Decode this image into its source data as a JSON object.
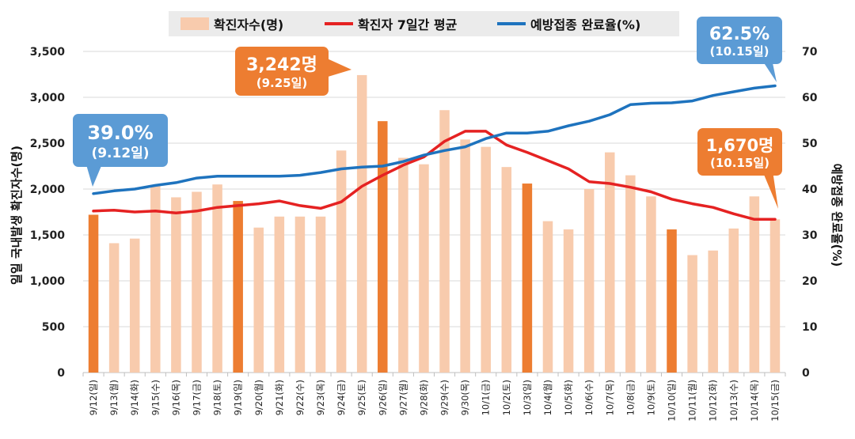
{
  "chart_data": {
    "type": "bar",
    "categories": [
      "9/12(일)",
      "9/13(월)",
      "9/14(화)",
      "9/15(수)",
      "9/16(목)",
      "9/17(금)",
      "9/18(토)",
      "9/19(일)",
      "9/20(월)",
      "9/21(화)",
      "9/22(수)",
      "9/23(목)",
      "9/24(금)",
      "9/25(토)",
      "9/26(일)",
      "9/27(월)",
      "9/28(화)",
      "9/29(수)",
      "9/30(목)",
      "10/1(금)",
      "10/2(토)",
      "10/3(일)",
      "10/4(월)",
      "10/5(화)",
      "10/6(수)",
      "10/7(목)",
      "10/8(금)",
      "10/9(토)",
      "10/10(일)",
      "10/11(월)",
      "10/12(화)",
      "10/13(수)",
      "10/14(목)",
      "10/15(금)"
    ],
    "series": [
      {
        "name": "확진자수(명)",
        "type": "bar",
        "axis": "left",
        "color": "#f8cbad",
        "highlight_color": "#ed7d31",
        "highlight_indices": [
          0,
          7,
          14,
          21,
          28
        ],
        "values": [
          1720,
          1410,
          1460,
          2040,
          1910,
          1970,
          2050,
          1870,
          1580,
          1700,
          1700,
          1700,
          2420,
          3242,
          2740,
          2340,
          2270,
          2860,
          2540,
          2460,
          2240,
          2060,
          1650,
          1560,
          2000,
          2400,
          2150,
          1920,
          1560,
          1280,
          1330,
          1570,
          1920,
          1670
        ]
      },
      {
        "name": "확진자 7일간 평균",
        "type": "line",
        "axis": "left",
        "color": "#e52222",
        "values": [
          1760,
          1770,
          1750,
          1760,
          1740,
          1760,
          1800,
          1820,
          1840,
          1870,
          1820,
          1790,
          1860,
          2030,
          2150,
          2260,
          2350,
          2520,
          2630,
          2630,
          2480,
          2400,
          2310,
          2220,
          2080,
          2060,
          2020,
          1970,
          1890,
          1840,
          1800,
          1730,
          1670,
          1670
        ]
      },
      {
        "name": "예방접종 완료율(%)",
        "type": "line",
        "axis": "right",
        "color": "#1e73be",
        "values": [
          39.0,
          39.6,
          40.0,
          40.8,
          41.4,
          42.4,
          42.8,
          42.8,
          42.8,
          42.8,
          43.0,
          43.6,
          44.4,
          44.8,
          45.0,
          46.0,
          47.4,
          48.4,
          49.2,
          51.0,
          52.2,
          52.2,
          52.6,
          53.8,
          54.8,
          56.2,
          58.4,
          58.7,
          58.8,
          59.2,
          60.4,
          61.2,
          62.0,
          62.5
        ]
      }
    ],
    "y_left": {
      "label": "일일 국내발생 확진자수(명)",
      "ylim": [
        0,
        3500
      ],
      "ticks": [
        "0",
        "500",
        "1,000",
        "1,500",
        "2,000",
        "2,500",
        "3,000",
        "3,500"
      ],
      "tick_values": [
        0,
        500,
        1000,
        1500,
        2000,
        2500,
        3000,
        3500
      ]
    },
    "y_right": {
      "label": "예방접종 완료율(%)",
      "ylim": [
        0,
        70
      ],
      "ticks": [
        "0",
        "10",
        "20",
        "30",
        "40",
        "50",
        "60",
        "70"
      ],
      "tick_values": [
        0,
        10,
        20,
        30,
        40,
        50,
        60,
        70
      ]
    },
    "grid": true,
    "legend_position": "top-center",
    "annotations": [
      {
        "id": "peak",
        "main": "3,242명",
        "sub": "(9.25일)",
        "color": "#ed7d31",
        "series_index": 0,
        "point_index": 13
      },
      {
        "id": "vax-start",
        "main": "39.0%",
        "sub": "(9.12일)",
        "color": "#5b9bd5",
        "series_index": 2,
        "point_index": 0
      },
      {
        "id": "vax-end",
        "main": "62.5%",
        "sub": "(10.15일)",
        "color": "#5b9bd5",
        "series_index": 2,
        "point_index": 33
      },
      {
        "id": "latest",
        "main": "1,670명",
        "sub": "(10.15일)",
        "color": "#ed7d31",
        "series_index": 1,
        "point_index": 33
      }
    ]
  }
}
